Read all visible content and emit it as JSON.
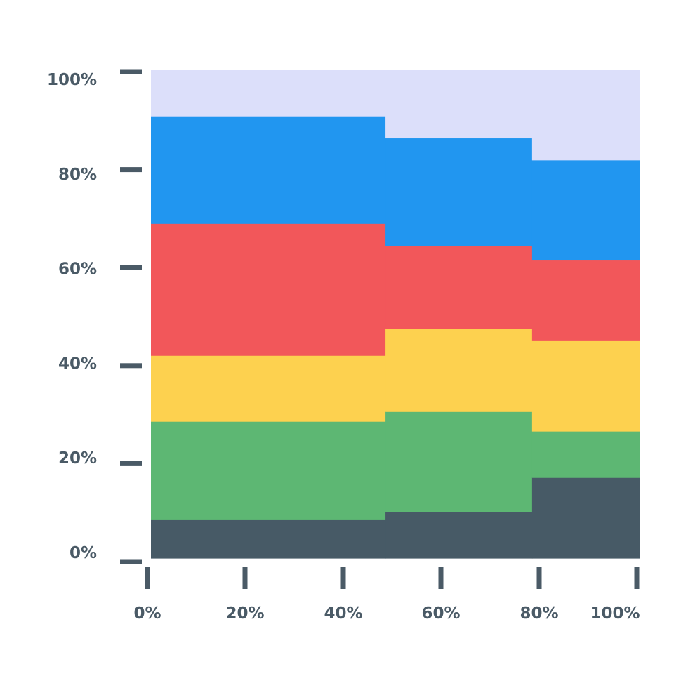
{
  "chart_data": {
    "type": "bar",
    "subtype": "marimekko (variable-width 100% stacked columns)",
    "title": "",
    "xlabel": "",
    "ylabel": "",
    "xlim": [
      0,
      100
    ],
    "ylim": [
      0,
      100
    ],
    "grid": false,
    "legend": "none",
    "x_ticks": [
      "0%",
      "20%",
      "40%",
      "60%",
      "80%",
      "100%"
    ],
    "y_ticks": [
      "0%",
      "20%",
      "40%",
      "60%",
      "80%",
      "100%"
    ],
    "columns": [
      {
        "x_start": 0,
        "x_end": 48
      },
      {
        "x_start": 48,
        "x_end": 78
      },
      {
        "x_start": 78,
        "x_end": 100
      }
    ],
    "series": [
      {
        "color": "#475a66",
        "values": [
          8,
          9.5,
          16.5
        ]
      },
      {
        "color": "#5db773",
        "values": [
          20,
          20.5,
          9.5
        ]
      },
      {
        "color": "#fdd14f",
        "values": [
          13.5,
          17,
          18.5
        ]
      },
      {
        "color": "#f2575a",
        "values": [
          27,
          17,
          16.5
        ]
      },
      {
        "color": "#2196f0",
        "values": [
          22,
          22,
          20.5
        ]
      },
      {
        "color": "#dcdffa",
        "values": [
          9.5,
          14,
          18.5
        ]
      }
    ],
    "axis_color": "#4a5a66"
  }
}
